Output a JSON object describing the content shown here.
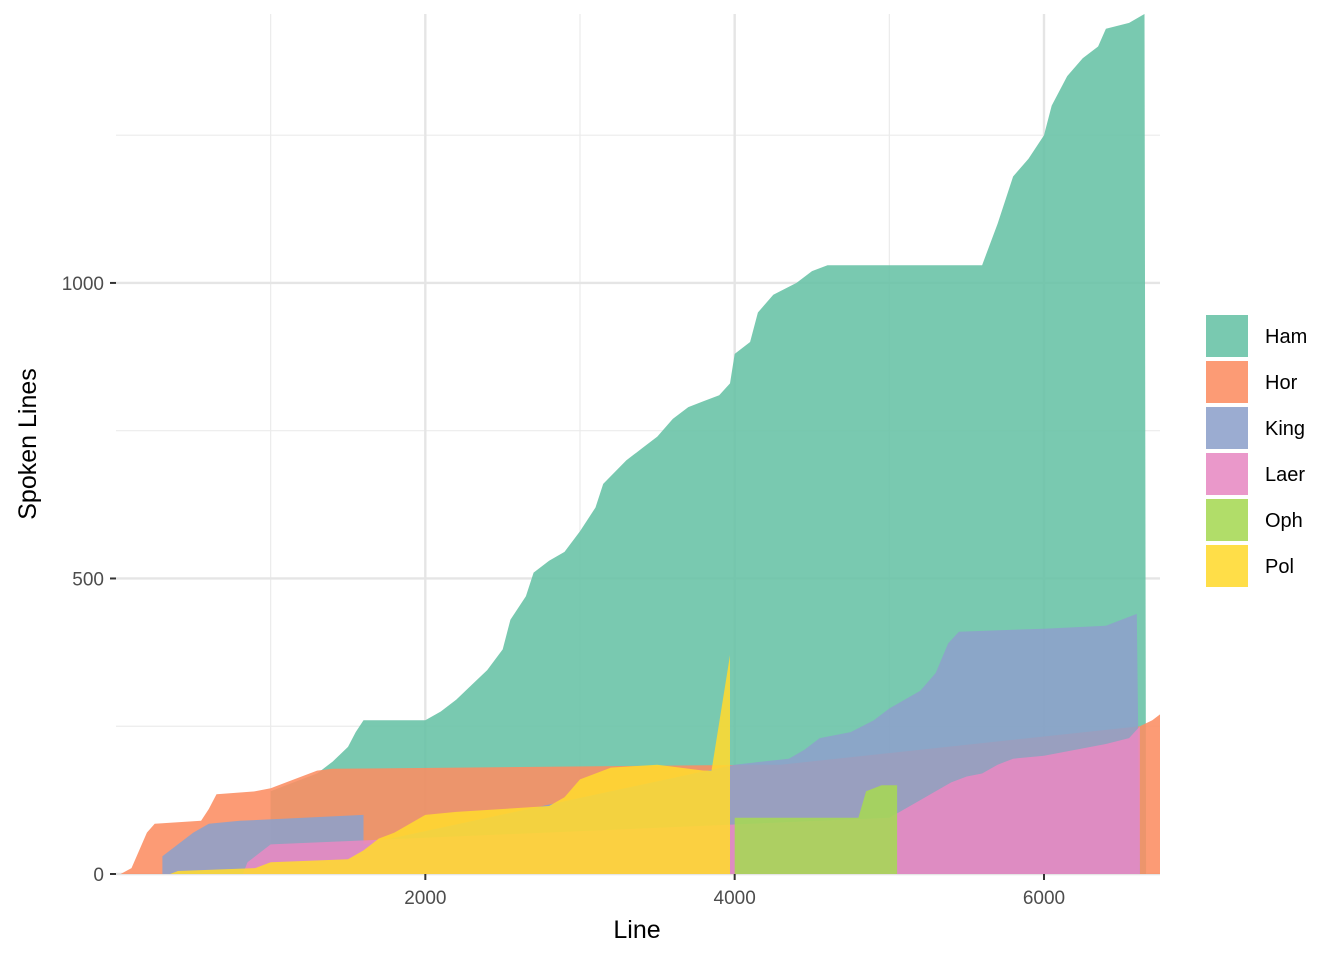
{
  "chart_data": {
    "type": "area",
    "xlabel": "Line",
    "ylabel": "Spoken Lines",
    "xlim": [
      0,
      6750
    ],
    "ylim": [
      0,
      1455
    ],
    "x_ticks": [
      2000,
      4000,
      6000
    ],
    "x_tick_labels": [
      "2000",
      "4000",
      "6000"
    ],
    "x_minor_ticks": [
      1000,
      3000,
      5000
    ],
    "y_ticks": [
      0,
      500,
      1000
    ],
    "y_tick_labels": [
      "0",
      "500",
      "1000"
    ],
    "y_minor_ticks": [
      250,
      750,
      1250
    ],
    "grid": true,
    "legend_position": "right",
    "series": [
      {
        "name": "Ham",
        "color": "#66C2A5",
        "points": [
          [
            1000,
            140
          ],
          [
            1100,
            150
          ],
          [
            1200,
            160
          ],
          [
            1300,
            170
          ],
          [
            1400,
            190
          ],
          [
            1500,
            215
          ],
          [
            1550,
            240
          ],
          [
            1600,
            260
          ],
          [
            2000,
            260
          ],
          [
            2100,
            275
          ],
          [
            2200,
            295
          ],
          [
            2300,
            320
          ],
          [
            2400,
            345
          ],
          [
            2500,
            380
          ],
          [
            2550,
            430
          ],
          [
            2650,
            470
          ],
          [
            2700,
            510
          ],
          [
            2800,
            530
          ],
          [
            2900,
            545
          ],
          [
            3000,
            580
          ],
          [
            3100,
            620
          ],
          [
            3150,
            660
          ],
          [
            3300,
            700
          ],
          [
            3400,
            720
          ],
          [
            3500,
            740
          ],
          [
            3600,
            770
          ],
          [
            3700,
            790
          ],
          [
            3800,
            800
          ],
          [
            3900,
            810
          ],
          [
            3970,
            830
          ],
          [
            4000,
            880
          ],
          [
            4100,
            900
          ],
          [
            4150,
            950
          ],
          [
            4250,
            980
          ],
          [
            4400,
            1000
          ],
          [
            4500,
            1020
          ],
          [
            4600,
            1030
          ],
          [
            5600,
            1030
          ],
          [
            5700,
            1100
          ],
          [
            5800,
            1180
          ],
          [
            5900,
            1210
          ],
          [
            6000,
            1250
          ],
          [
            6050,
            1300
          ],
          [
            6150,
            1350
          ],
          [
            6250,
            1380
          ],
          [
            6350,
            1400
          ],
          [
            6400,
            1430
          ],
          [
            6550,
            1440
          ],
          [
            6650,
            1455
          ],
          [
            6660,
            0
          ]
        ]
      },
      {
        "name": "Hor",
        "color": "#FC8D62",
        "points": [
          [
            30,
            0
          ],
          [
            100,
            10
          ],
          [
            150,
            40
          ],
          [
            200,
            70
          ],
          [
            250,
            85
          ],
          [
            550,
            90
          ],
          [
            600,
            110
          ],
          [
            650,
            135
          ],
          [
            900,
            140
          ],
          [
            1000,
            145
          ],
          [
            1100,
            155
          ],
          [
            1200,
            165
          ],
          [
            1300,
            175
          ],
          [
            1400,
            178
          ],
          [
            4200,
            185
          ],
          [
            4300,
            185
          ],
          [
            6620,
            250
          ],
          [
            6700,
            260
          ],
          [
            6750,
            270
          ],
          [
            6750,
            0
          ]
        ]
      },
      {
        "name": "King",
        "color": "#8DA0CB",
        "points": [
          [
            300,
            0
          ],
          [
            300,
            30
          ],
          [
            400,
            50
          ],
          [
            500,
            70
          ],
          [
            600,
            85
          ],
          [
            800,
            90
          ],
          [
            1600,
            100
          ],
          [
            1600,
            50
          ],
          [
            4000,
            185
          ],
          [
            4350,
            195
          ],
          [
            4450,
            210
          ],
          [
            4550,
            230
          ],
          [
            4750,
            240
          ],
          [
            4900,
            260
          ],
          [
            5000,
            280
          ],
          [
            5200,
            310
          ],
          [
            5300,
            340
          ],
          [
            5380,
            390
          ],
          [
            5450,
            410
          ],
          [
            6000,
            415
          ],
          [
            6400,
            420
          ],
          [
            6600,
            440
          ],
          [
            6620,
            0
          ]
        ]
      },
      {
        "name": "Laer",
        "color": "#E78AC3",
        "points": [
          [
            820,
            0
          ],
          [
            850,
            20
          ],
          [
            950,
            40
          ],
          [
            1000,
            50
          ],
          [
            5000,
            95
          ],
          [
            5100,
            110
          ],
          [
            5200,
            125
          ],
          [
            5300,
            140
          ],
          [
            5400,
            155
          ],
          [
            5500,
            165
          ],
          [
            5600,
            170
          ],
          [
            5700,
            185
          ],
          [
            5800,
            195
          ],
          [
            6000,
            200
          ],
          [
            6200,
            210
          ],
          [
            6400,
            220
          ],
          [
            6550,
            230
          ],
          [
            6620,
            250
          ],
          [
            6620,
            0
          ]
        ]
      },
      {
        "name": "Oph",
        "color": "#A6D854",
        "points": [
          [
            4000,
            0
          ],
          [
            4000,
            95
          ],
          [
            4800,
            95
          ],
          [
            4850,
            140
          ],
          [
            4950,
            150
          ],
          [
            5050,
            150
          ],
          [
            5050,
            0
          ]
        ]
      },
      {
        "name": "Pol",
        "color": "#FFD92F",
        "points": [
          [
            350,
            0
          ],
          [
            400,
            5
          ],
          [
            900,
            10
          ],
          [
            1000,
            20
          ],
          [
            1500,
            25
          ],
          [
            1600,
            40
          ],
          [
            1700,
            60
          ],
          [
            1800,
            70
          ],
          [
            1900,
            85
          ],
          [
            2000,
            100
          ],
          [
            2200,
            105
          ],
          [
            2500,
            110
          ],
          [
            2800,
            115
          ],
          [
            2900,
            130
          ],
          [
            3000,
            160
          ],
          [
            3100,
            170
          ],
          [
            3200,
            180
          ],
          [
            3500,
            185
          ],
          [
            3800,
            175
          ],
          [
            3850,
            175
          ],
          [
            3970,
            370
          ],
          [
            3970,
            0
          ]
        ]
      }
    ]
  }
}
